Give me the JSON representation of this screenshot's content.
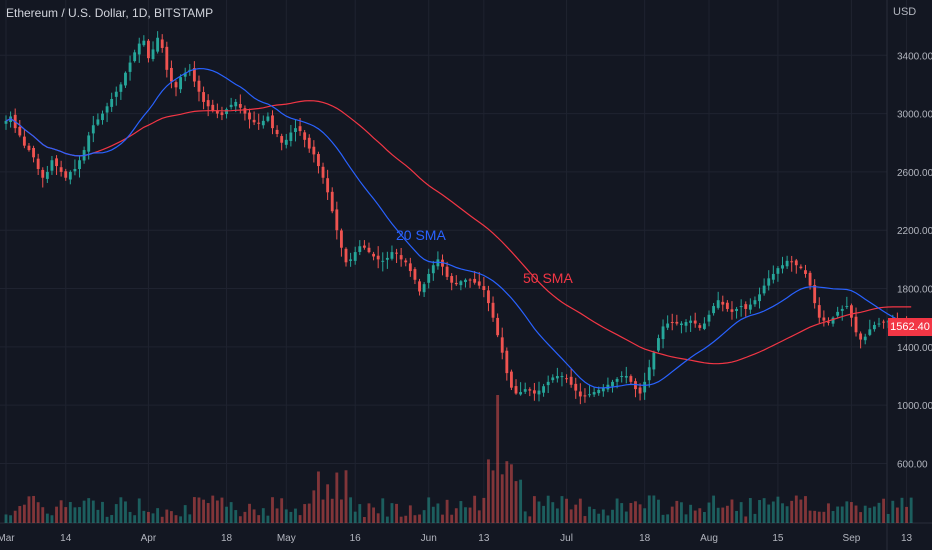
{
  "header": {
    "title": "Ethereum / U.S. Dollar, 1D, BITSTAMP",
    "currency": "USD"
  },
  "last_price_tag": "1562.40",
  "annotations": {
    "sma20": "20 SMA",
    "sma50": "50 SMA"
  },
  "colors": {
    "background": "#131722",
    "grid": "#1f2330",
    "up": "#26a69a",
    "down": "#ef5350",
    "sma20": "#2962ff",
    "sma50": "#f23645",
    "text": "#b2b5be"
  },
  "chart_data": {
    "type": "candlestick",
    "title": "Ethereum / U.S. Dollar, 1D, BITSTAMP",
    "y_unit": "USD",
    "ylim": [
      200,
      3750
    ],
    "y_ticks": [
      600,
      1000,
      1400,
      1800,
      2200,
      2600,
      3000,
      3400
    ],
    "y_tick_labels": [
      "600.00",
      "1000.00",
      "1400.00",
      "1800.00",
      "2200.00",
      "2600.00",
      "3000.00",
      "3400.00"
    ],
    "x_tick_labels": [
      "Mar",
      "14",
      "Apr",
      "18",
      "May",
      "16",
      "Jun",
      "13",
      "Jul",
      "18",
      "Aug",
      "15",
      "Sep",
      "13"
    ],
    "x_tick_days": [
      0,
      13,
      31,
      48,
      61,
      76,
      92,
      104,
      122,
      139,
      153,
      168,
      184,
      196
    ],
    "x_range_days": [
      0,
      206
    ],
    "grid": true,
    "legend": "inline labels",
    "last_price": 1562.4,
    "close": [
      2950,
      2980,
      2900,
      2850,
      2780,
      2750,
      2700,
      2620,
      2560,
      2600,
      2680,
      2640,
      2600,
      2560,
      2600,
      2620,
      2680,
      2750,
      2850,
      2920,
      2960,
      3000,
      3050,
      3100,
      3150,
      3200,
      3280,
      3350,
      3420,
      3480,
      3500,
      3380,
      3440,
      3520,
      3450,
      3300,
      3220,
      3180,
      3250,
      3280,
      3300,
      3220,
      3150,
      3080,
      3050,
      3020,
      3000,
      2990,
      3030,
      3060,
      3080,
      3040,
      3000,
      2960,
      2940,
      2930,
      2950,
      2980,
      2900,
      2860,
      2800,
      2820,
      2870,
      2900,
      2880,
      2820,
      2760,
      2720,
      2640,
      2560,
      2460,
      2330,
      2200,
      2080,
      1980,
      2000,
      2050,
      2090,
      2080,
      2050,
      2020,
      2000,
      1990,
      2010,
      2050,
      2040,
      2000,
      1980,
      1920,
      1860,
      1780,
      1830,
      1900,
      1960,
      2000,
      1950,
      1880,
      1840,
      1830,
      1850,
      1860,
      1860,
      1840,
      1820,
      1790,
      1700,
      1600,
      1480,
      1360,
      1220,
      1120,
      1080,
      1090,
      1110,
      1100,
      1080,
      1100,
      1130,
      1160,
      1190,
      1200,
      1200,
      1180,
      1140,
      1100,
      1060,
      1060,
      1075,
      1090,
      1105,
      1120,
      1140,
      1160,
      1180,
      1200,
      1200,
      1160,
      1110,
      1080,
      1160,
      1260,
      1360,
      1460,
      1540,
      1560,
      1570,
      1560,
      1560,
      1570,
      1580,
      1560,
      1530,
      1560,
      1620,
      1680,
      1720,
      1690,
      1660,
      1640,
      1660,
      1680,
      1660,
      1690,
      1720,
      1760,
      1820,
      1870,
      1900,
      1940,
      1960,
      1990,
      1980,
      1960,
      1940,
      1900,
      1820,
      1700,
      1600,
      1580,
      1570,
      1600,
      1640,
      1660,
      1680,
      1600,
      1500,
      1450,
      1470,
      1520,
      1550,
      1560,
      1570,
      1575,
      1570,
      1565,
      1570,
      1565,
      1562
    ]
  }
}
